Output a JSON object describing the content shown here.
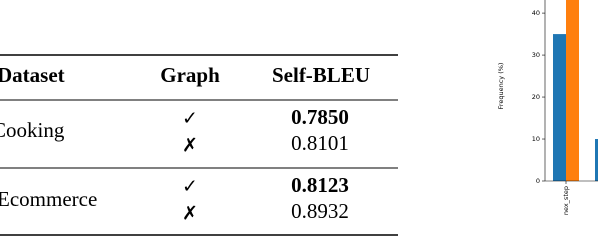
{
  "table": {
    "header": [
      "Dataset",
      "Graph",
      "Self-BLEU"
    ],
    "groups": [
      {
        "dataset": "Cooking",
        "rows": [
          [
            "✓",
            "0.7850"
          ],
          [
            "✗",
            "0.8101"
          ]
        ]
      },
      {
        "dataset": "Ecommerce",
        "rows": [
          [
            "✓",
            "0.8123"
          ],
          [
            "✗",
            "0.8932"
          ]
        ]
      }
    ]
  },
  "chart_data": {
    "type": "bar",
    "ylabel": "Frequency (%)",
    "categories": [
      "nex_step",
      null
    ],
    "series": [
      {
        "color": "#1f77b4",
        "values": [
          35,
          10
        ]
      },
      {
        "color": "#ff7f0e",
        "values": [
          46,
          null
        ]
      }
    ],
    "ylim": [
      0,
      43
    ],
    "yticks": [
      0,
      10,
      20,
      30,
      40
    ]
  }
}
